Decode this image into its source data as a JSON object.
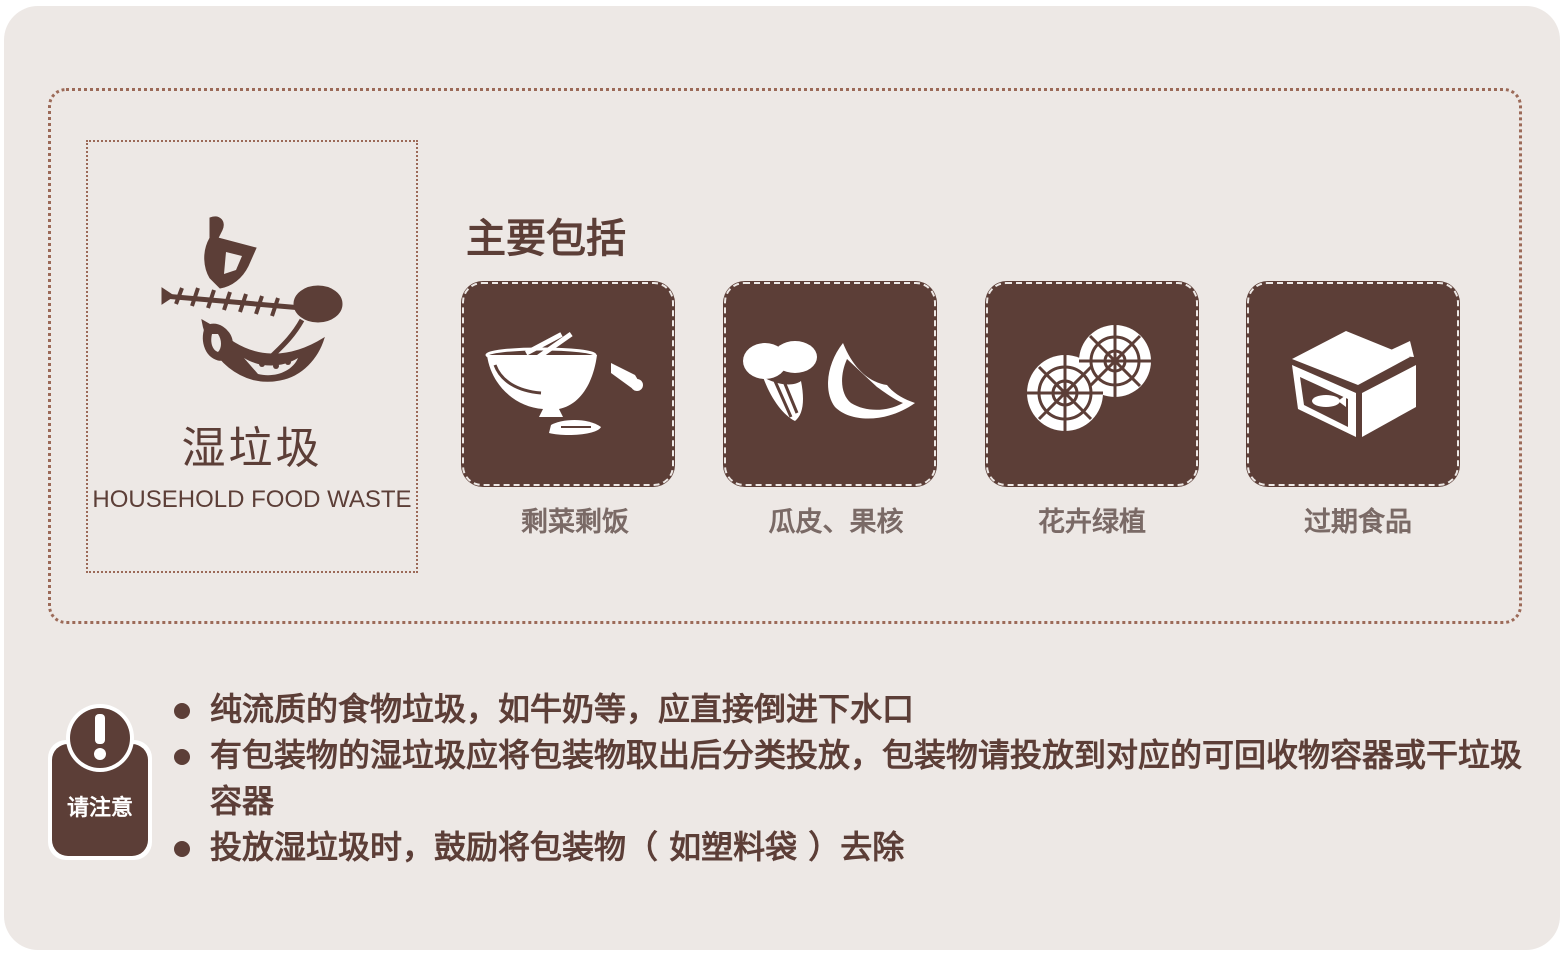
{
  "category": {
    "title": "湿垃圾",
    "subtitle": "HOUSEHOLD FOOD WASTE",
    "icon": "fish-bone-food-waste-icon"
  },
  "includes_heading": "主要包括",
  "items": [
    {
      "label": "剩菜剩饭",
      "icon": "rice-bowl-leftovers-icon"
    },
    {
      "label": "瓜皮、果核",
      "icon": "vegetable-melon-rind-icon"
    },
    {
      "label": "花卉绿植",
      "icon": "flowers-icon"
    },
    {
      "label": "过期食品",
      "icon": "expired-food-box-icon"
    }
  ],
  "notice": {
    "label": "请注意",
    "icon": "exclamation-icon",
    "items": [
      "纯流质的食物垃圾，如牛奶等，应直接倒进下水口",
      "有包装物的湿垃圾应将包装物取出后分类投放，包装物请投放到对应的可回收物容器或干垃圾容器",
      "投放湿垃圾时，鼓励将包装物（ 如塑料袋 ）去除"
    ]
  },
  "colors": {
    "brand": "#5c3e37",
    "background": "#ede8e5",
    "label_gray": "#7a6a66",
    "border": "#9c6a58"
  }
}
